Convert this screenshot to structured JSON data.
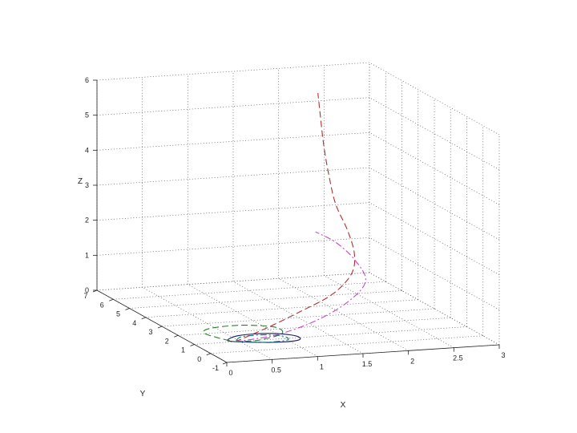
{
  "chart_data": {
    "type": "line",
    "view": "3d",
    "title": "",
    "xlabel": "X",
    "ylabel": "Y",
    "zlabel": "Z",
    "xlim": [
      0,
      3
    ],
    "ylim": [
      -1,
      7
    ],
    "zlim": [
      0,
      6
    ],
    "grid": true,
    "xticks": [
      "0",
      "0.5",
      "1",
      "1.5",
      "2",
      "2.5",
      "3"
    ],
    "yticks": [
      "-1",
      "0",
      "1",
      "2",
      "3",
      "4",
      "5",
      "6",
      "7"
    ],
    "zticks": [
      "0",
      "1",
      "2",
      "3",
      "4",
      "5",
      "6"
    ],
    "series": [
      {
        "color": "#1a1a66",
        "dash": "solid",
        "points": [
          [
            0.45,
            1.0,
            0.0
          ],
          [
            0.8,
            0.7,
            0.0
          ],
          [
            1.1,
            0.75,
            0.0
          ],
          [
            1.15,
            1.2,
            0.0
          ],
          [
            0.95,
            1.6,
            0.0
          ],
          [
            0.6,
            1.6,
            0.0
          ],
          [
            0.4,
            1.2,
            0.0
          ],
          [
            0.45,
            1.0,
            0.0
          ]
        ]
      },
      {
        "color": "#0b7a7a",
        "dash": "dashdot",
        "points": [
          [
            0.45,
            1.0,
            0.0
          ],
          [
            0.75,
            0.75,
            0.0
          ],
          [
            1.0,
            0.85,
            0.0
          ],
          [
            1.02,
            1.25,
            0.0
          ],
          [
            0.85,
            1.5,
            0.0
          ],
          [
            0.6,
            1.45,
            0.0
          ],
          [
            0.45,
            1.0,
            0.0
          ]
        ]
      },
      {
        "color": "#2e7d32",
        "dash": "dashed",
        "points": [
          [
            0.45,
            1.0,
            0.0
          ],
          [
            0.7,
            1.0,
            0.0
          ],
          [
            1.05,
            1.5,
            0.0
          ],
          [
            1.1,
            2.2,
            0.0
          ],
          [
            0.8,
            2.6,
            0.0
          ],
          [
            0.45,
            2.5,
            0.0
          ],
          [
            0.3,
            2.1,
            0.0
          ],
          [
            0.35,
            1.5,
            0.0
          ],
          [
            0.45,
            1.0,
            0.0
          ]
        ]
      },
      {
        "color": "#b03030",
        "dash": "dashed",
        "points": [
          [
            0.45,
            1.0,
            0.0
          ],
          [
            0.85,
            1.3,
            0.25
          ],
          [
            1.3,
            1.8,
            0.5
          ],
          [
            1.75,
            2.3,
            0.8
          ],
          [
            2.05,
            2.8,
            1.2
          ],
          [
            2.12,
            3.0,
            1.7
          ],
          [
            2.1,
            3.3,
            2.3
          ],
          [
            2.02,
            3.6,
            3.0
          ],
          [
            1.98,
            3.8,
            3.8
          ],
          [
            1.96,
            4.0,
            4.6
          ],
          [
            1.95,
            4.15,
            5.4
          ],
          [
            1.95,
            4.3,
            6.0
          ]
        ]
      },
      {
        "color": "#cc44cc",
        "dash": "dashdot",
        "points": [
          [
            0.45,
            1.0,
            0.0
          ],
          [
            0.9,
            1.0,
            0.12
          ],
          [
            1.4,
            1.35,
            0.35
          ],
          [
            1.85,
            1.85,
            0.7
          ],
          [
            2.1,
            2.2,
            1.15
          ],
          [
            2.05,
            2.55,
            1.65
          ],
          [
            1.9,
            2.9,
            2.1
          ],
          [
            1.7,
            3.05,
            2.4
          ]
        ]
      }
    ]
  }
}
